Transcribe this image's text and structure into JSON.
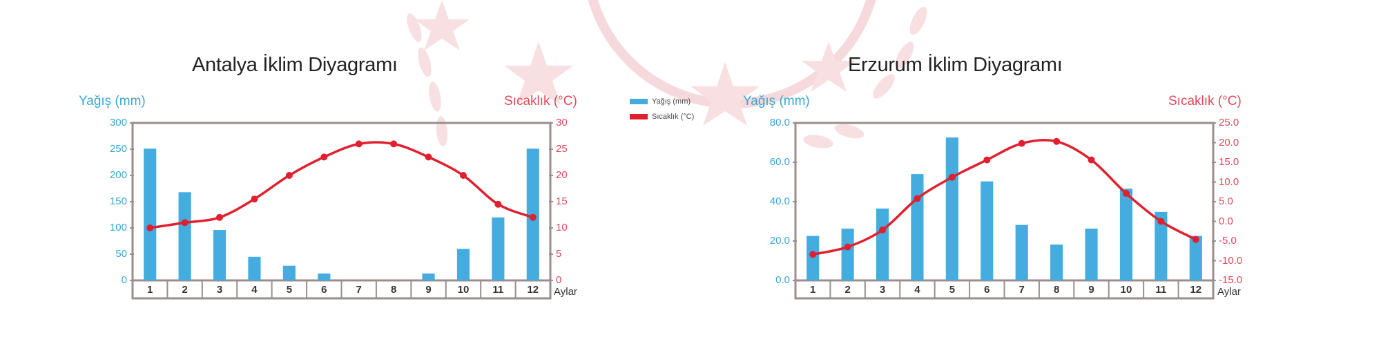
{
  "legend": {
    "items": [
      {
        "label": "Yağış (mm)",
        "color": "#45ace0"
      },
      {
        "label": "Sıcaklık (°C)",
        "color": "#e0202f"
      }
    ]
  },
  "charts": {
    "antalya": {
      "title": "Antalya İklim Diyagramı",
      "left_axis_title": "Yağış (mm)",
      "right_axis_title": "Sıcaklık (°C)",
      "left_ticks": [
        "300",
        "250",
        "200",
        "150",
        "100",
        "50",
        "0"
      ],
      "right_ticks": [
        "30",
        "25",
        "20",
        "15",
        "10",
        "5",
        "0"
      ],
      "x_axis_label": "Aylar",
      "months": [
        "1",
        "2",
        "3",
        "4",
        "5",
        "6",
        "7",
        "8",
        "9",
        "10",
        "11",
        "12"
      ]
    },
    "erzurum": {
      "title": "Erzurum İklim Diyagramı",
      "left_axis_title": "Yağış (mm)",
      "right_axis_title": "Sıcaklık (°C)",
      "left_ticks": [
        "80.0",
        "60.0",
        "40.0",
        "20.0",
        "0.0"
      ],
      "right_ticks": [
        "25.0",
        "20.0",
        "15.0",
        "10.0",
        "5.0",
        "0.0",
        "-5.0",
        "-10.0",
        "-15.0"
      ],
      "x_axis_label": "Aylar",
      "months": [
        "1",
        "2",
        "3",
        "4",
        "5",
        "6",
        "7",
        "8",
        "9",
        "10",
        "11",
        "12"
      ]
    }
  },
  "colors": {
    "precip_bar": "#45ace0",
    "temp_line": "#e0202f",
    "axis_frame": "#9a8e8c",
    "left_axis_text": "#3aa6d6",
    "right_axis_text": "#e0485a"
  },
  "chart_data": [
    {
      "type": "bar+line",
      "title": "Antalya İklim Diyagramı",
      "xlabel": "Aylar",
      "ylabel": "Yağış (mm)",
      "y2label": "Sıcaklık (°C)",
      "categories": [
        "1",
        "2",
        "3",
        "4",
        "5",
        "6",
        "7",
        "8",
        "9",
        "10",
        "11",
        "12"
      ],
      "ylim": [
        0,
        300
      ],
      "y2lim": [
        0,
        30
      ],
      "legend_position": "right",
      "grid": false,
      "series": [
        {
          "name": "Yağış (mm)",
          "type": "bar",
          "axis": "left",
          "values": [
            251,
            168,
            96,
            45,
            28,
            13,
            0,
            0,
            13,
            60,
            120,
            251
          ]
        },
        {
          "name": "Sıcaklık (°C)",
          "type": "line",
          "axis": "right",
          "values": [
            10,
            11,
            12,
            15.5,
            20,
            23.5,
            26,
            26,
            23.5,
            20,
            14.5,
            12
          ]
        }
      ]
    },
    {
      "type": "bar+line",
      "title": "Erzurum İklim Diyagramı",
      "xlabel": "Aylar",
      "ylabel": "Yağış (mm)",
      "y2label": "Sıcaklık (°C)",
      "categories": [
        "1",
        "2",
        "3",
        "4",
        "5",
        "6",
        "7",
        "8",
        "9",
        "10",
        "11",
        "12"
      ],
      "ylim": [
        0,
        80
      ],
      "y2lim": [
        -15,
        25
      ],
      "legend_position": "left",
      "grid": false,
      "series": [
        {
          "name": "Yağış (mm)",
          "type": "bar",
          "axis": "left",
          "values": [
            22.6,
            26.3,
            36.5,
            54.0,
            72.6,
            50.3,
            28.2,
            18.2,
            26.3,
            46.6,
            34.8,
            22.6
          ]
        },
        {
          "name": "Sıcaklık (°C)",
          "type": "line",
          "axis": "right",
          "values": [
            -8.4,
            -6.5,
            -2.2,
            5.8,
            11.2,
            15.6,
            19.8,
            20.3,
            15.6,
            7.1,
            0.0,
            -4.6
          ]
        }
      ]
    }
  ]
}
